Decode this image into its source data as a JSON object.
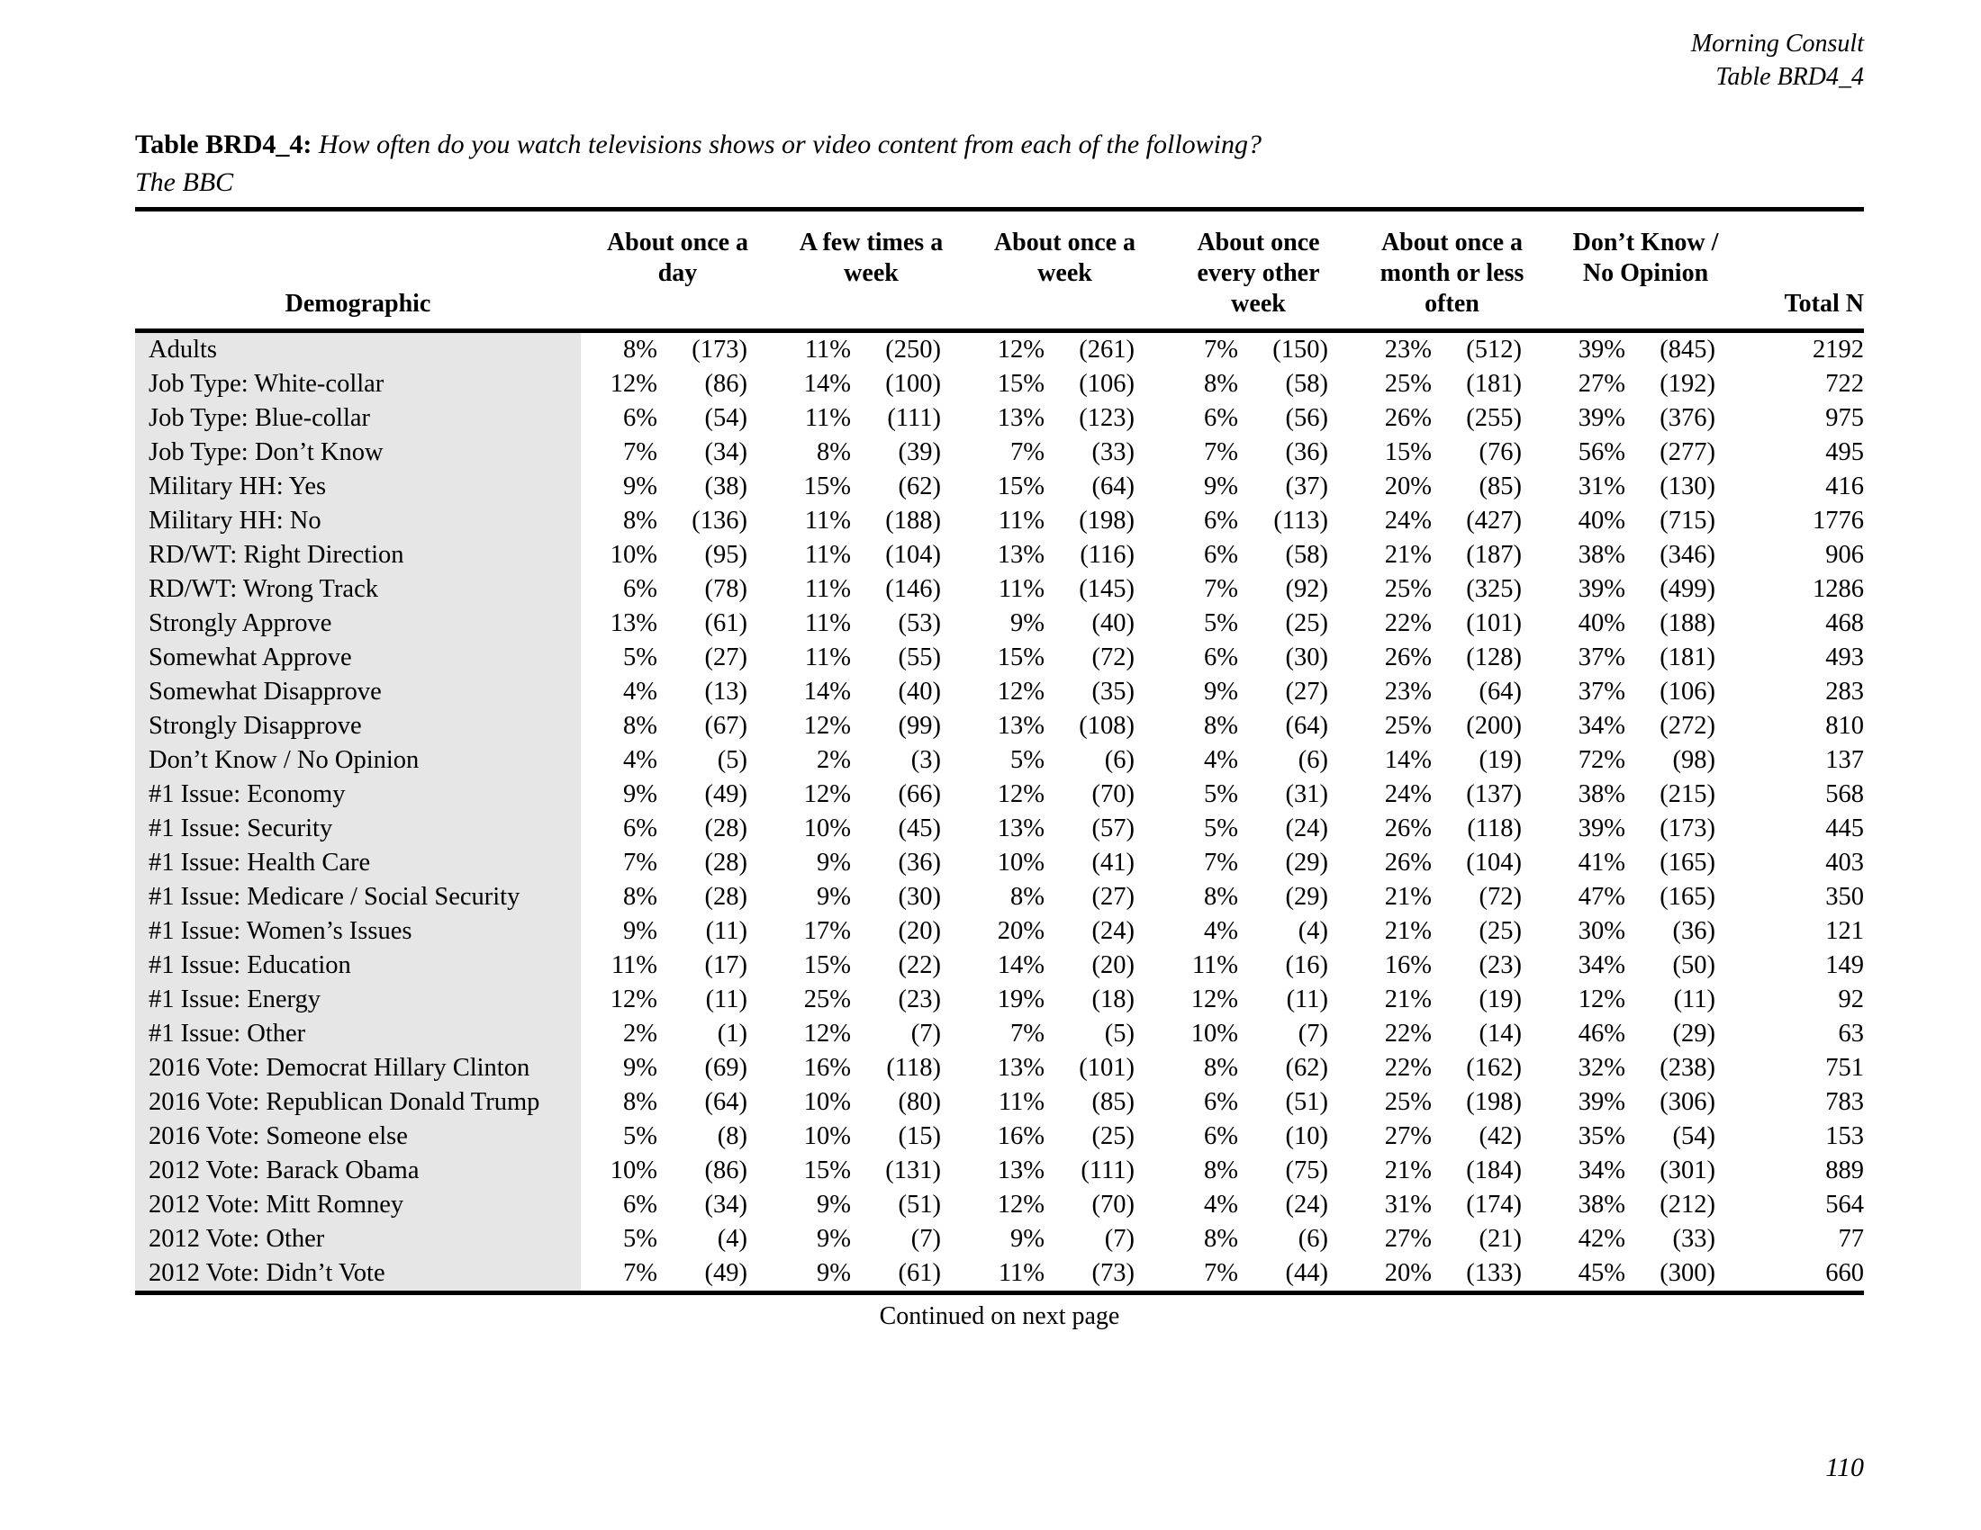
{
  "doc": {
    "brand": "Morning Consult",
    "table_ref": "Table BRD4_4",
    "title_prefix": "Table BRD4_4:",
    "title_question": "How often do you watch televisions shows or video content from each of the following?",
    "title_subject": "The BBC",
    "footer_note": "Continued on next page",
    "page_number": "110"
  },
  "table": {
    "demographic_header": "Demographic",
    "total_n_header": "Total N",
    "category_headers": [
      [
        "About once a",
        "day"
      ],
      [
        "A few times a",
        "week"
      ],
      [
        "About once a",
        "week"
      ],
      [
        "About once",
        "every other",
        "week"
      ],
      [
        "About once a",
        "month or less",
        "often"
      ],
      [
        "Don’t Know /",
        "No Opinion"
      ]
    ],
    "rows": [
      {
        "label": "Adults",
        "cells": [
          [
            "8%",
            "(173)"
          ],
          [
            "11%",
            "(250)"
          ],
          [
            "12%",
            "(261)"
          ],
          [
            "7%",
            "(150)"
          ],
          [
            "23%",
            "(512)"
          ],
          [
            "39%",
            "(845)"
          ]
        ],
        "total": "2192"
      },
      {
        "label": "Job Type: White-collar",
        "cells": [
          [
            "12%",
            "(86)"
          ],
          [
            "14%",
            "(100)"
          ],
          [
            "15%",
            "(106)"
          ],
          [
            "8%",
            "(58)"
          ],
          [
            "25%",
            "(181)"
          ],
          [
            "27%",
            "(192)"
          ]
        ],
        "total": "722"
      },
      {
        "label": "Job Type: Blue-collar",
        "cells": [
          [
            "6%",
            "(54)"
          ],
          [
            "11%",
            "(111)"
          ],
          [
            "13%",
            "(123)"
          ],
          [
            "6%",
            "(56)"
          ],
          [
            "26%",
            "(255)"
          ],
          [
            "39%",
            "(376)"
          ]
        ],
        "total": "975"
      },
      {
        "label": "Job Type: Don’t Know",
        "cells": [
          [
            "7%",
            "(34)"
          ],
          [
            "8%",
            "(39)"
          ],
          [
            "7%",
            "(33)"
          ],
          [
            "7%",
            "(36)"
          ],
          [
            "15%",
            "(76)"
          ],
          [
            "56%",
            "(277)"
          ]
        ],
        "total": "495"
      },
      {
        "label": "Military HH: Yes",
        "cells": [
          [
            "9%",
            "(38)"
          ],
          [
            "15%",
            "(62)"
          ],
          [
            "15%",
            "(64)"
          ],
          [
            "9%",
            "(37)"
          ],
          [
            "20%",
            "(85)"
          ],
          [
            "31%",
            "(130)"
          ]
        ],
        "total": "416"
      },
      {
        "label": "Military HH: No",
        "cells": [
          [
            "8%",
            "(136)"
          ],
          [
            "11%",
            "(188)"
          ],
          [
            "11%",
            "(198)"
          ],
          [
            "6%",
            "(113)"
          ],
          [
            "24%",
            "(427)"
          ],
          [
            "40%",
            "(715)"
          ]
        ],
        "total": "1776"
      },
      {
        "label": "RD/WT: Right Direction",
        "cells": [
          [
            "10%",
            "(95)"
          ],
          [
            "11%",
            "(104)"
          ],
          [
            "13%",
            "(116)"
          ],
          [
            "6%",
            "(58)"
          ],
          [
            "21%",
            "(187)"
          ],
          [
            "38%",
            "(346)"
          ]
        ],
        "total": "906"
      },
      {
        "label": "RD/WT: Wrong Track",
        "cells": [
          [
            "6%",
            "(78)"
          ],
          [
            "11%",
            "(146)"
          ],
          [
            "11%",
            "(145)"
          ],
          [
            "7%",
            "(92)"
          ],
          [
            "25%",
            "(325)"
          ],
          [
            "39%",
            "(499)"
          ]
        ],
        "total": "1286"
      },
      {
        "label": "Strongly Approve",
        "cells": [
          [
            "13%",
            "(61)"
          ],
          [
            "11%",
            "(53)"
          ],
          [
            "9%",
            "(40)"
          ],
          [
            "5%",
            "(25)"
          ],
          [
            "22%",
            "(101)"
          ],
          [
            "40%",
            "(188)"
          ]
        ],
        "total": "468"
      },
      {
        "label": "Somewhat Approve",
        "cells": [
          [
            "5%",
            "(27)"
          ],
          [
            "11%",
            "(55)"
          ],
          [
            "15%",
            "(72)"
          ],
          [
            "6%",
            "(30)"
          ],
          [
            "26%",
            "(128)"
          ],
          [
            "37%",
            "(181)"
          ]
        ],
        "total": "493"
      },
      {
        "label": "Somewhat Disapprove",
        "cells": [
          [
            "4%",
            "(13)"
          ],
          [
            "14%",
            "(40)"
          ],
          [
            "12%",
            "(35)"
          ],
          [
            "9%",
            "(27)"
          ],
          [
            "23%",
            "(64)"
          ],
          [
            "37%",
            "(106)"
          ]
        ],
        "total": "283"
      },
      {
        "label": "Strongly Disapprove",
        "cells": [
          [
            "8%",
            "(67)"
          ],
          [
            "12%",
            "(99)"
          ],
          [
            "13%",
            "(108)"
          ],
          [
            "8%",
            "(64)"
          ],
          [
            "25%",
            "(200)"
          ],
          [
            "34%",
            "(272)"
          ]
        ],
        "total": "810"
      },
      {
        "label": "Don’t Know / No Opinion",
        "cells": [
          [
            "4%",
            "(5)"
          ],
          [
            "2%",
            "(3)"
          ],
          [
            "5%",
            "(6)"
          ],
          [
            "4%",
            "(6)"
          ],
          [
            "14%",
            "(19)"
          ],
          [
            "72%",
            "(98)"
          ]
        ],
        "total": "137"
      },
      {
        "label": "#1 Issue: Economy",
        "cells": [
          [
            "9%",
            "(49)"
          ],
          [
            "12%",
            "(66)"
          ],
          [
            "12%",
            "(70)"
          ],
          [
            "5%",
            "(31)"
          ],
          [
            "24%",
            "(137)"
          ],
          [
            "38%",
            "(215)"
          ]
        ],
        "total": "568"
      },
      {
        "label": "#1 Issue: Security",
        "cells": [
          [
            "6%",
            "(28)"
          ],
          [
            "10%",
            "(45)"
          ],
          [
            "13%",
            "(57)"
          ],
          [
            "5%",
            "(24)"
          ],
          [
            "26%",
            "(118)"
          ],
          [
            "39%",
            "(173)"
          ]
        ],
        "total": "445"
      },
      {
        "label": "#1 Issue: Health Care",
        "cells": [
          [
            "7%",
            "(28)"
          ],
          [
            "9%",
            "(36)"
          ],
          [
            "10%",
            "(41)"
          ],
          [
            "7%",
            "(29)"
          ],
          [
            "26%",
            "(104)"
          ],
          [
            "41%",
            "(165)"
          ]
        ],
        "total": "403"
      },
      {
        "label": "#1 Issue: Medicare / Social Security",
        "cells": [
          [
            "8%",
            "(28)"
          ],
          [
            "9%",
            "(30)"
          ],
          [
            "8%",
            "(27)"
          ],
          [
            "8%",
            "(29)"
          ],
          [
            "21%",
            "(72)"
          ],
          [
            "47%",
            "(165)"
          ]
        ],
        "total": "350"
      },
      {
        "label": "#1 Issue: Women’s Issues",
        "cells": [
          [
            "9%",
            "(11)"
          ],
          [
            "17%",
            "(20)"
          ],
          [
            "20%",
            "(24)"
          ],
          [
            "4%",
            "(4)"
          ],
          [
            "21%",
            "(25)"
          ],
          [
            "30%",
            "(36)"
          ]
        ],
        "total": "121"
      },
      {
        "label": "#1 Issue: Education",
        "cells": [
          [
            "11%",
            "(17)"
          ],
          [
            "15%",
            "(22)"
          ],
          [
            "14%",
            "(20)"
          ],
          [
            "11%",
            "(16)"
          ],
          [
            "16%",
            "(23)"
          ],
          [
            "34%",
            "(50)"
          ]
        ],
        "total": "149"
      },
      {
        "label": "#1 Issue: Energy",
        "cells": [
          [
            "12%",
            "(11)"
          ],
          [
            "25%",
            "(23)"
          ],
          [
            "19%",
            "(18)"
          ],
          [
            "12%",
            "(11)"
          ],
          [
            "21%",
            "(19)"
          ],
          [
            "12%",
            "(11)"
          ]
        ],
        "total": "92"
      },
      {
        "label": "#1 Issue: Other",
        "cells": [
          [
            "2%",
            "(1)"
          ],
          [
            "12%",
            "(7)"
          ],
          [
            "7%",
            "(5)"
          ],
          [
            "10%",
            "(7)"
          ],
          [
            "22%",
            "(14)"
          ],
          [
            "46%",
            "(29)"
          ]
        ],
        "total": "63"
      },
      {
        "label": "2016 Vote: Democrat Hillary Clinton",
        "cells": [
          [
            "9%",
            "(69)"
          ],
          [
            "16%",
            "(118)"
          ],
          [
            "13%",
            "(101)"
          ],
          [
            "8%",
            "(62)"
          ],
          [
            "22%",
            "(162)"
          ],
          [
            "32%",
            "(238)"
          ]
        ],
        "total": "751"
      },
      {
        "label": "2016 Vote: Republican Donald Trump",
        "cells": [
          [
            "8%",
            "(64)"
          ],
          [
            "10%",
            "(80)"
          ],
          [
            "11%",
            "(85)"
          ],
          [
            "6%",
            "(51)"
          ],
          [
            "25%",
            "(198)"
          ],
          [
            "39%",
            "(306)"
          ]
        ],
        "total": "783"
      },
      {
        "label": "2016 Vote: Someone else",
        "cells": [
          [
            "5%",
            "(8)"
          ],
          [
            "10%",
            "(15)"
          ],
          [
            "16%",
            "(25)"
          ],
          [
            "6%",
            "(10)"
          ],
          [
            "27%",
            "(42)"
          ],
          [
            "35%",
            "(54)"
          ]
        ],
        "total": "153"
      },
      {
        "label": "2012 Vote: Barack Obama",
        "cells": [
          [
            "10%",
            "(86)"
          ],
          [
            "15%",
            "(131)"
          ],
          [
            "13%",
            "(111)"
          ],
          [
            "8%",
            "(75)"
          ],
          [
            "21%",
            "(184)"
          ],
          [
            "34%",
            "(301)"
          ]
        ],
        "total": "889"
      },
      {
        "label": "2012 Vote: Mitt Romney",
        "cells": [
          [
            "6%",
            "(34)"
          ],
          [
            "9%",
            "(51)"
          ],
          [
            "12%",
            "(70)"
          ],
          [
            "4%",
            "(24)"
          ],
          [
            "31%",
            "(174)"
          ],
          [
            "38%",
            "(212)"
          ]
        ],
        "total": "564"
      },
      {
        "label": "2012 Vote: Other",
        "cells": [
          [
            "5%",
            "(4)"
          ],
          [
            "9%",
            "(7)"
          ],
          [
            "9%",
            "(7)"
          ],
          [
            "8%",
            "(6)"
          ],
          [
            "27%",
            "(21)"
          ],
          [
            "42%",
            "(33)"
          ]
        ],
        "total": "77"
      },
      {
        "label": "2012 Vote: Didn’t Vote",
        "cells": [
          [
            "7%",
            "(49)"
          ],
          [
            "9%",
            "(61)"
          ],
          [
            "11%",
            "(73)"
          ],
          [
            "7%",
            "(44)"
          ],
          [
            "20%",
            "(133)"
          ],
          [
            "45%",
            "(300)"
          ]
        ],
        "total": "660"
      }
    ]
  }
}
